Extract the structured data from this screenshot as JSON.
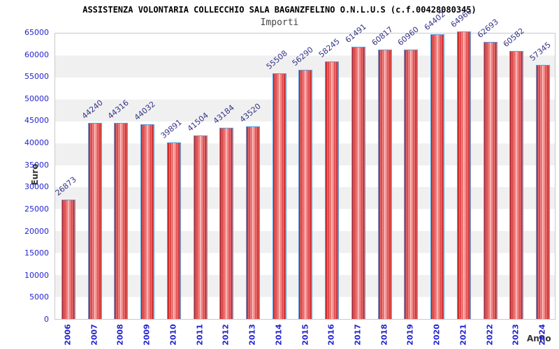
{
  "title": "ASSISTENZA VOLONTARIA COLLECCHIO SALA BAGANZFELINO O.N.L.U.S (c.f.00428080345)",
  "subtitle": "Importi",
  "chart_data": {
    "type": "bar",
    "title": "ASSISTENZA VOLONTARIA COLLECCHIO SALA BAGANZFELINO O.N.L.U.S (c.f.00428080345)",
    "subtitle": "Importi",
    "xlabel": "Anno",
    "ylabel": "Euro",
    "categories": [
      "2006",
      "2007",
      "2008",
      "2009",
      "2010",
      "2011",
      "2012",
      "2013",
      "2014",
      "2015",
      "2016",
      "2017",
      "2018",
      "2019",
      "2020",
      "2021",
      "2022",
      "2023",
      "2024"
    ],
    "values": [
      26873,
      44240,
      44316,
      44032,
      39891,
      41504,
      43184,
      43520,
      55508,
      56290,
      58245,
      61491,
      60817,
      60960,
      64402,
      64960,
      62693,
      60582,
      57345
    ],
    "ylim": [
      0,
      65000
    ],
    "ytick_step": 5000,
    "grid": "horizontal-bands-every-5000",
    "legend": "none",
    "colors": {
      "bar_fill": "#c62222",
      "bar_fill_light": "#f9bcbc",
      "bar_border": "#58a0e0",
      "axis_tick_text": "#2323d0",
      "value_label_text": "#333388",
      "band_gray": "#f0f0f0",
      "band_white": "#ffffff"
    }
  }
}
